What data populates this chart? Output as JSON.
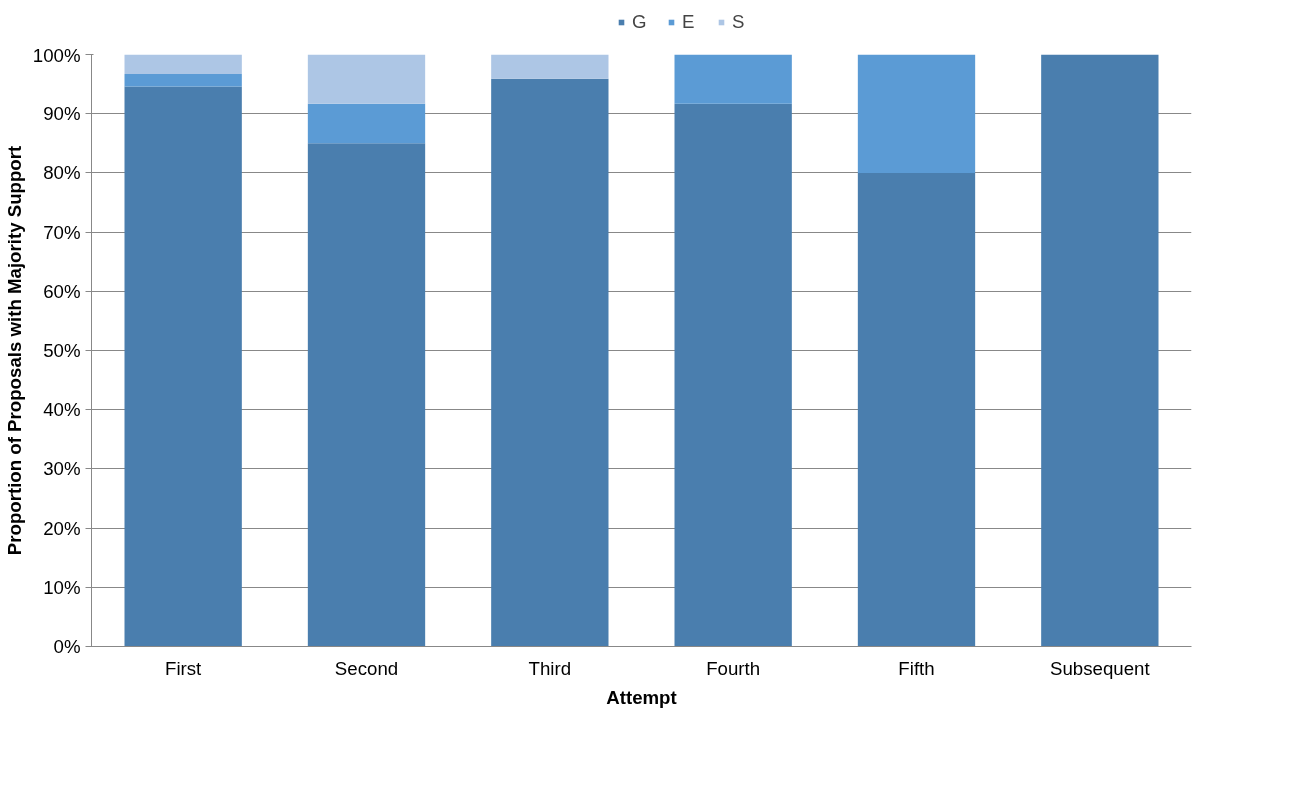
{
  "chart_data": {
    "type": "bar",
    "stacked": true,
    "xlabel": "Attempt",
    "ylabel": "Proportion of Proposals with Majority Support",
    "categories": [
      "First",
      "Second",
      "Third",
      "Fourth",
      "Fifth",
      "Subsequent"
    ],
    "series": [
      {
        "name": "G",
        "color": "#4a7eae",
        "values": [
          94.6,
          85.0,
          95.9,
          91.7,
          80.0,
          100
        ]
      },
      {
        "name": "E",
        "color": "#5b9bd5",
        "values": [
          2.1,
          6.7,
          0,
          8.3,
          20.0,
          0
        ]
      },
      {
        "name": "S",
        "color": "#adc6e5",
        "values": [
          3.3,
          8.3,
          4.1,
          0,
          0,
          0
        ]
      }
    ],
    "ylim": [
      0,
      100
    ],
    "yticks": [
      {
        "value": 0,
        "label": "0%"
      },
      {
        "value": 10,
        "label": "10%"
      },
      {
        "value": 20,
        "label": "20%"
      },
      {
        "value": 30,
        "label": "30%"
      },
      {
        "value": 40,
        "label": "40%"
      },
      {
        "value": 50,
        "label": "50%"
      },
      {
        "value": 60,
        "label": "60%"
      },
      {
        "value": 70,
        "label": "70%"
      },
      {
        "value": 80,
        "label": "80%"
      },
      {
        "value": 90,
        "label": "90%"
      },
      {
        "value": 100,
        "label": "100%"
      }
    ],
    "grid": "y",
    "legend": "top"
  }
}
